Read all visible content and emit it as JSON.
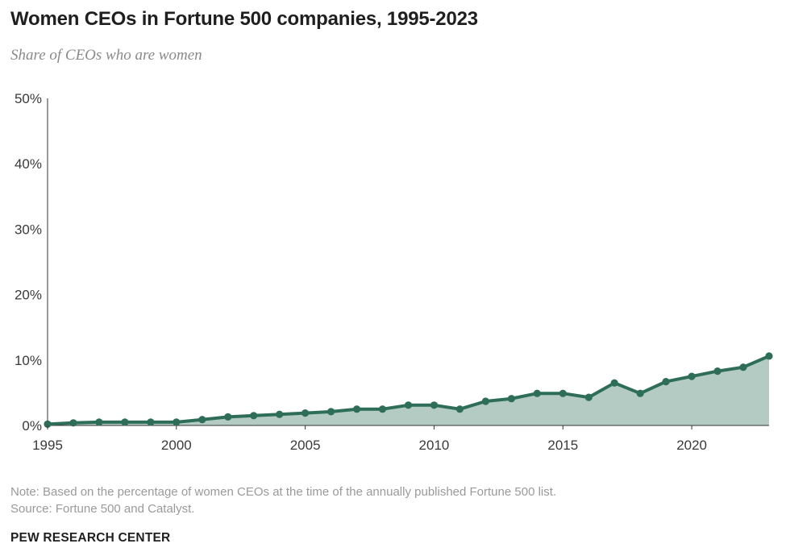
{
  "header": {
    "title": "Women CEOs in Fortune 500 companies, 1995-2023",
    "subtitle": "Share of CEOs who are women"
  },
  "footer": {
    "note": "Note: Based on the percentage of women CEOs at the time of the annually published Fortune 500 list.",
    "source": "Source: Fortune 500 and Catalyst.",
    "brand": "PEW RESEARCH CENTER"
  },
  "colors": {
    "line": "#2e6e58",
    "area": "#b3cbc3",
    "axis": "#333333"
  },
  "chart_data": {
    "type": "area",
    "x": [
      1995,
      1996,
      1997,
      1998,
      1999,
      2000,
      2001,
      2002,
      2003,
      2004,
      2005,
      2006,
      2007,
      2008,
      2009,
      2010,
      2011,
      2012,
      2013,
      2014,
      2015,
      2016,
      2017,
      2018,
      2019,
      2020,
      2021,
      2022,
      2023
    ],
    "series": [
      {
        "values": [
          0.2,
          0.4,
          0.5,
          0.5,
          0.5,
          0.5,
          0.9,
          1.3,
          1.5,
          1.7,
          1.9,
          2.1,
          2.5,
          2.5,
          3.1,
          3.1,
          2.5,
          3.7,
          4.1,
          4.9,
          4.9,
          4.3,
          6.5,
          4.9,
          6.7,
          7.5,
          8.3,
          8.9,
          10.6
        ]
      }
    ],
    "xticks": [
      1995,
      2000,
      2005,
      2010,
      2015,
      2020
    ],
    "xtick_labels": [
      "1995",
      "2000",
      "2005",
      "2010",
      "2015",
      "2020"
    ],
    "yticks": [
      0,
      10,
      20,
      30,
      40,
      50
    ],
    "ytick_labels": [
      "0%",
      "10%",
      "20%",
      "30%",
      "40%",
      "50%"
    ],
    "xlim": [
      1995,
      2023
    ],
    "ylim": [
      0,
      50
    ],
    "grid": false,
    "legend": "none"
  }
}
